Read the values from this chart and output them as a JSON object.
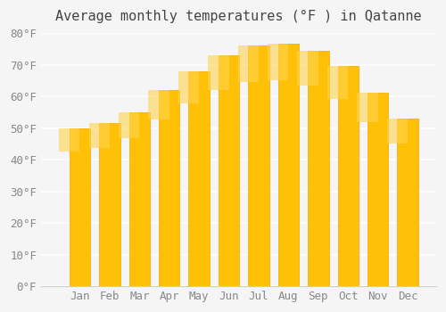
{
  "title": "Average monthly temperatures (°F ) in Qatanne",
  "months": [
    "Jan",
    "Feb",
    "Mar",
    "Apr",
    "May",
    "Jun",
    "Jul",
    "Aug",
    "Sep",
    "Oct",
    "Nov",
    "Dec"
  ],
  "values": [
    50,
    51.5,
    55,
    62,
    68,
    73,
    76,
    76.5,
    74.5,
    69.5,
    61,
    53
  ],
  "bar_color_top": "#FFC107",
  "bar_color_bottom": "#FFB300",
  "ylim": [
    0,
    80
  ],
  "yticks": [
    0,
    10,
    20,
    30,
    40,
    50,
    60,
    70,
    80
  ],
  "ylabel_suffix": "°F",
  "background_color": "#f5f5f5",
  "grid_color": "#ffffff",
  "title_fontsize": 11,
  "tick_fontsize": 9,
  "bar_edge_color": "#FFA000",
  "bar_width": 0.7
}
